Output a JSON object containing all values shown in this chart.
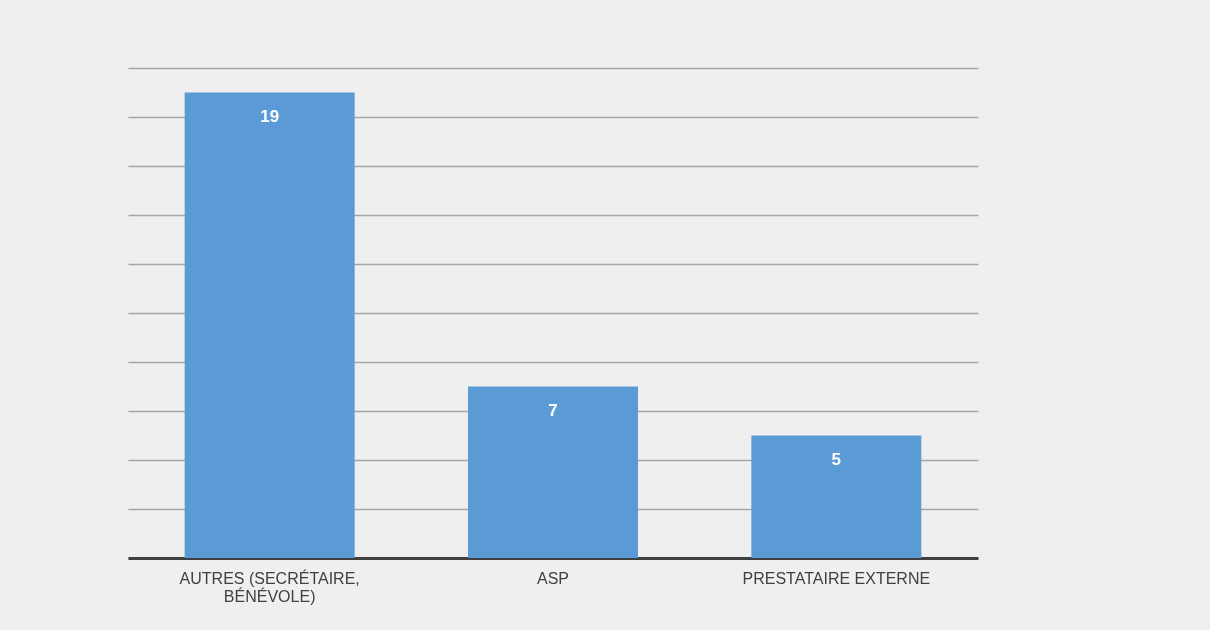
{
  "chart_data": {
    "type": "bar",
    "categories": [
      "AUTRES (SECRÉTAIRE, BÉNÉVOLE)",
      "ASP",
      "PRESTATAIRE EXTERNE"
    ],
    "values": [
      19,
      7,
      5
    ],
    "color": "#5b9bd5",
    "data_labels": true,
    "ylim": [
      0,
      20
    ],
    "yticks": [
      {
        "value": 0,
        "label": null
      },
      {
        "value": 2,
        "label": null
      },
      {
        "value": 4,
        "label": null
      },
      {
        "value": 6,
        "label": null
      },
      {
        "value": 8,
        "label": null
      },
      {
        "value": 10,
        "label": null
      },
      {
        "value": 12,
        "label": null
      },
      {
        "value": 14,
        "label": null
      },
      {
        "value": 16,
        "label": null
      },
      {
        "value": 18,
        "label": null
      },
      {
        "value": 20,
        "label": null
      }
    ],
    "grid": "y",
    "tick_labels": "x"
  }
}
